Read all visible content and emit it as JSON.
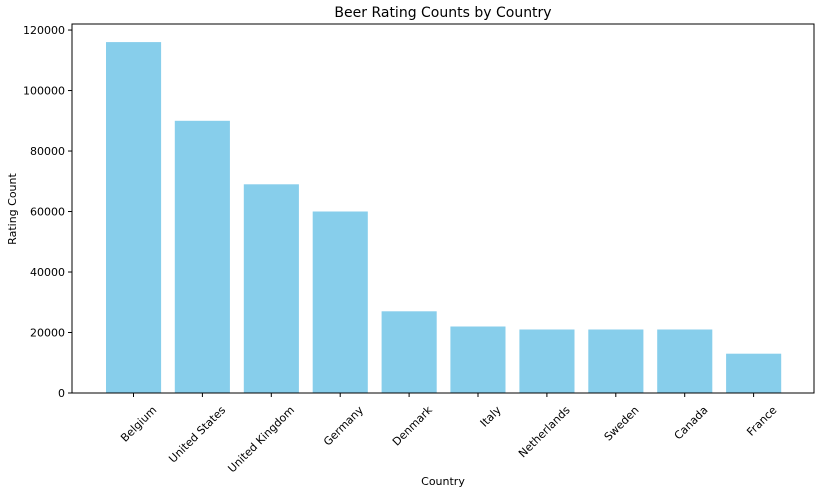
{
  "chart_data": {
    "type": "bar",
    "title": "Beer Rating Counts by Country",
    "xlabel": "Country",
    "ylabel": "Rating Count",
    "categories": [
      "Belgium",
      "United States",
      "United Kingdom",
      "Germany",
      "Denmark",
      "Italy",
      "Netherlands",
      "Sweden",
      "Canada",
      "France"
    ],
    "values": [
      116000,
      90000,
      69000,
      60000,
      27000,
      22000,
      21000,
      21000,
      21000,
      13000
    ],
    "ylim": [
      0,
      122000
    ],
    "yticks": [
      0,
      20000,
      40000,
      60000,
      80000,
      100000,
      120000
    ],
    "ytick_labels": [
      "0",
      "20000",
      "40000",
      "60000",
      "80000",
      "100000",
      "120000"
    ],
    "bar_color": "#87ceeb",
    "grid": false,
    "legend": "none"
  }
}
